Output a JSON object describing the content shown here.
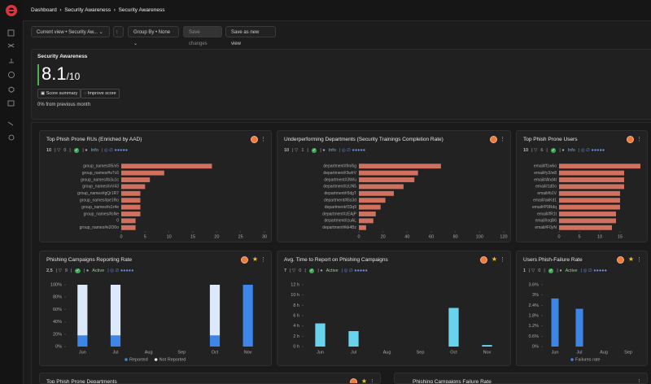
{
  "breadcrumb": [
    "Dashboard",
    "Security Awareness",
    "Security Awareness"
  ],
  "toolbar": {
    "view": "Current view • Security Aw...",
    "group_by": "Group By • None",
    "save": "Save changes",
    "save_new": "Save as new view"
  },
  "score": {
    "title": "Security Awareness",
    "value": 8.1,
    "max": "/10",
    "buttons": [
      "Score summary",
      "Improve score"
    ],
    "change": "0% from previous month"
  },
  "widgets": [
    {
      "title": "Top Phish Prone RUs (Enriched by AAD)",
      "stats": {
        "count": "10",
        "filters": "0",
        "status": "Info"
      },
      "chart_data": {
        "type": "hbar",
        "categories": [
          "group_names#l5/x5",
          "group_names#tv7c6",
          "group_names#b3u1c",
          "group_names#vV43",
          "group_names#gQr1R7",
          "group_names#pe1Ro",
          "group_names#x1r4e",
          "group_names#lsNe",
          "0",
          "group_names#e2O0o"
        ],
        "values": [
          19,
          9,
          6,
          5,
          4,
          4,
          4,
          4,
          3,
          3
        ],
        "color": "#d2705f",
        "xlim": [
          0,
          30
        ],
        "xticks": [
          0,
          5,
          10,
          15,
          20,
          25,
          30
        ]
      }
    },
    {
      "title": "Underperforming Departments (Security Trainings Completion Rate)",
      "stats": {
        "count": "10",
        "filters": "1",
        "status": "Info"
      },
      "chart_data": {
        "type": "hbar",
        "categories": [
          "department#fm/6g",
          "department#3wlrV",
          "department#3W/u",
          "department#zUN5",
          "department#5dgT",
          "department#l5s3d",
          "department#33q9",
          "department#zEAjP",
          "department#zuAL",
          "department#kk4Bz"
        ],
        "values": [
          68,
          49,
          46,
          37,
          29,
          22,
          18,
          14,
          12,
          6
        ],
        "color": "#d2705f",
        "xlim": [
          0,
          120
        ],
        "xticks": [
          0,
          20,
          40,
          60,
          80,
          100,
          120
        ]
      }
    },
    {
      "title": "Top Phish Prone Users",
      "stats": {
        "count": "10",
        "filters": "6",
        "status": "Info"
      },
      "chart_data": {
        "type": "hbar",
        "categories": [
          "email#f1w6o",
          "email#y3/w8",
          "email#Ahd4t",
          "email#1d0o",
          "email#b1V",
          "email#akKd1",
          "email#P9Rdq",
          "email#fR1t",
          "email#oqB6",
          "email#F0yN"
        ],
        "values": [
          20,
          16,
          16,
          16,
          15,
          15,
          15,
          14,
          14,
          13
        ],
        "color": "#d2705f",
        "xlim": [
          0,
          20
        ],
        "xticks": [
          0,
          5,
          10,
          15
        ]
      }
    },
    {
      "title": "Phishing Campaigns Reporting Rate",
      "stats": {
        "count": "2,5",
        "filters": "9",
        "status": "Active"
      },
      "chart_data": {
        "type": "stacked_bar",
        "categories": [
          "Jun",
          "Jul",
          "Aug",
          "Sep",
          "Oct",
          "Nov"
        ],
        "series": [
          {
            "name": "Reported",
            "color": "#3d86e8",
            "values": [
              18,
              18,
              null,
              null,
              18,
              100
            ]
          },
          {
            "name": "Not Reported",
            "color": "#dce9fb",
            "values": [
              82,
              82,
              null,
              null,
              82,
              0
            ]
          }
        ],
        "ylim": [
          0,
          100
        ],
        "yticks": [
          {
            "value": 0,
            "label": "0%"
          },
          {
            "value": 20,
            "label": "20%"
          },
          {
            "value": 40,
            "label": "40%"
          },
          {
            "value": 60,
            "label": "60%"
          },
          {
            "value": 80,
            "label": "80%"
          },
          {
            "value": 100,
            "label": "100%"
          }
        ]
      }
    },
    {
      "title": "Avg. Time to Report on Phishing Campaigns",
      "stats": {
        "count": "7",
        "filters": "0",
        "status": "Active"
      },
      "chart_data": {
        "type": "bar",
        "categories": [
          "Jun",
          "Jul",
          "Aug",
          "Sep",
          "Oct",
          "Nov"
        ],
        "values": [
          4.5,
          3,
          null,
          null,
          7.5,
          0.3
        ],
        "color": "#67d3ec",
        "ylim": [
          0,
          12
        ],
        "yticks": [
          {
            "value": 0,
            "label": "0 h"
          },
          {
            "value": 2,
            "label": "2 h"
          },
          {
            "value": 4,
            "label": "4 h"
          },
          {
            "value": 6,
            "label": "6 h"
          },
          {
            "value": 8,
            "label": "8 h"
          },
          {
            "value": 10,
            "label": "10 h"
          },
          {
            "value": 12,
            "label": "12 h"
          }
        ]
      }
    },
    {
      "title": "Users Phish-Failure Rate",
      "stats": {
        "count": "1",
        "filters": "0",
        "status": "Active"
      },
      "chart_data": {
        "type": "bar",
        "categories": [
          "Jun",
          "Jul",
          "Aug",
          "Sep"
        ],
        "series": [
          {
            "name": "Failures rate",
            "color": "#3d86e8",
            "values": [
              2.8,
              2.2,
              null,
              null
            ]
          }
        ],
        "ylim": [
          0,
          3.6
        ],
        "yticks": [
          {
            "value": 0,
            "label": "0%"
          },
          {
            "value": 0.6,
            "label": "0.6%"
          },
          {
            "value": 1.2,
            "label": "1.2%"
          },
          {
            "value": 1.8,
            "label": "1.8%"
          },
          {
            "value": 2.4,
            "label": "2.4%"
          },
          {
            "value": 3,
            "label": "3%"
          },
          {
            "value": 3.6,
            "label": "3.6%"
          }
        ]
      }
    },
    {
      "title": "Top Phish Prone Departments"
    },
    {
      "title": "Phishing Campaigns Failure Rate"
    }
  ]
}
